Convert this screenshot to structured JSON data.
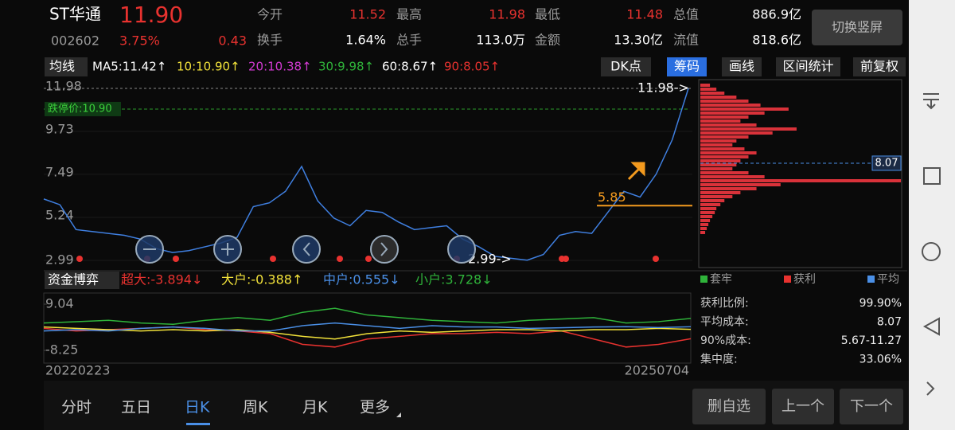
{
  "header": {
    "name": "ST华通",
    "price": "11.90",
    "code": "002602",
    "pct": "3.75%",
    "change": "0.43",
    "stats": [
      [
        "今开",
        "11.52"
      ],
      [
        "最高",
        "11.98"
      ],
      [
        "最低",
        "11.48"
      ],
      [
        "总值",
        "886.9亿"
      ],
      [
        "换手",
        "1.64%"
      ],
      [
        "总手",
        "113.0万"
      ],
      [
        "金额",
        "13.30亿"
      ],
      [
        "流值",
        "818.6亿"
      ]
    ],
    "rotate": "切换竖屏"
  },
  "ma_bar": {
    "label": "均线",
    "items": [
      "MA5:11.42↑",
      "10:10.90↑",
      "20:10.38↑",
      "30:9.98↑",
      "60:8.67↑",
      "90:8.05↑"
    ],
    "buttons": [
      "DK点",
      "筹码",
      "画线",
      "区间统计",
      "前复权"
    ]
  },
  "chart_data": [
    {
      "type": "line",
      "color": "#3f7fe0",
      "ylim": [
        2.99,
        11.98
      ],
      "yticks": [
        11.98,
        9.73,
        7.49,
        5.24,
        2.99
      ],
      "values": [
        6.2,
        5.9,
        4.6,
        4.5,
        4.4,
        4.3,
        4.1,
        3.6,
        3.4,
        3.5,
        3.7,
        3.9,
        4.2,
        5.8,
        6.0,
        6.6,
        7.9,
        6.1,
        5.2,
        4.8,
        5.6,
        5.5,
        5.0,
        4.6,
        4.7,
        4.8,
        4.1,
        3.7,
        3.2,
        3.1,
        3.0,
        3.3,
        4.3,
        4.5,
        4.4,
        5.5,
        6.6,
        6.3,
        7.5,
        9.3,
        11.98
      ],
      "limit_down": 10.9,
      "limit_down_label": "跌停价:10.90",
      "high_label": "11.98->",
      "low_label": "2.99->",
      "support": 5.85
    },
    {
      "type": "multiline",
      "title": "资金博弈",
      "ylim": [
        -8.25,
        9.04
      ],
      "yticks": [
        9.04,
        -8.25
      ],
      "x": [
        "20220223",
        null,
        null,
        null,
        null,
        null,
        null,
        null,
        null,
        null,
        null,
        null,
        null,
        null,
        null,
        null,
        null,
        null,
        null,
        null,
        "20250704"
      ],
      "series": [
        {
          "name": "超大:-3.894↓",
          "color": "#e8322f",
          "values": [
            0,
            -1,
            -0.5,
            0,
            0.5,
            -0.5,
            -1,
            -2,
            -6,
            -7,
            -4,
            -3,
            -2,
            -2,
            -1.5,
            -2,
            -1,
            -4,
            -7,
            -6,
            -3.9
          ]
        },
        {
          "name": "大户:-0.388↑",
          "color": "#f2e23a",
          "values": [
            0.5,
            0,
            -0.5,
            -1,
            -0.5,
            -1,
            -0.5,
            -1.5,
            -3,
            -4,
            -2,
            -1,
            -1.5,
            -1,
            -0.5,
            -0.5,
            -1,
            -0.5,
            -0.5,
            0,
            -0.4
          ]
        },
        {
          "name": "中户:0.555↓",
          "color": "#4a8fe6",
          "values": [
            -1,
            -0.5,
            -1,
            0,
            0.5,
            0,
            -1,
            -1,
            1,
            2,
            1,
            0,
            1,
            0.5,
            0.5,
            0,
            0.2,
            0.5,
            0.6,
            0.3,
            0.6
          ]
        },
        {
          "name": "小户:3.728↓",
          "color": "#2fb33a",
          "values": [
            2,
            2.5,
            3,
            2,
            1.5,
            3,
            4,
            3,
            6,
            7.5,
            5,
            4,
            3,
            2.5,
            2,
            3,
            3.5,
            4,
            2,
            2.5,
            3.7
          ]
        }
      ]
    },
    {
      "type": "hbar",
      "color": "#d9323a",
      "avg": 8.07,
      "values": [
        12,
        20,
        30,
        45,
        60,
        75,
        110,
        80,
        60,
        50,
        70,
        120,
        90,
        60,
        45,
        40,
        55,
        70,
        60,
        50,
        45,
        40,
        60,
        80,
        250,
        100,
        70,
        50,
        40,
        30,
        25,
        20,
        18,
        15,
        12,
        10,
        8,
        6
      ]
    }
  ],
  "chip": {
    "legend": [
      "套牢",
      "获利",
      "平均"
    ],
    "stats": [
      [
        "获利比例:",
        "99.90%"
      ],
      [
        "平均成本:",
        "8.07"
      ],
      [
        "90%成本:",
        "5.67-11.27"
      ],
      [
        "集中度:",
        "33.06%"
      ]
    ]
  },
  "tabs": [
    "分时",
    "五日",
    "日K",
    "周K",
    "月K",
    "更多"
  ],
  "actions": [
    "删自选",
    "上一个",
    "下一个"
  ]
}
